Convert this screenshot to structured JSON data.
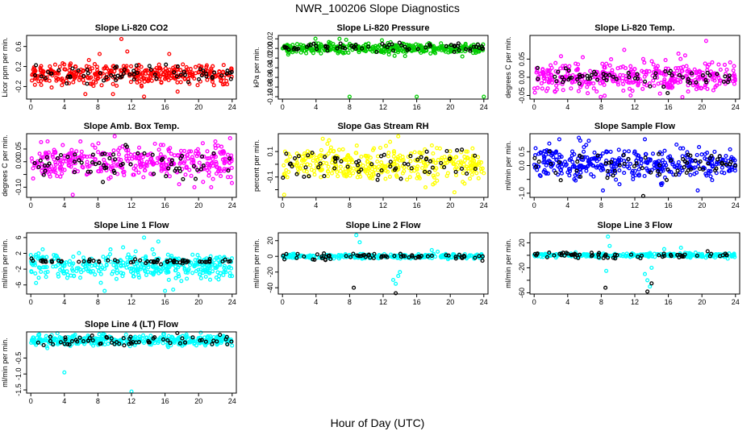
{
  "page": {
    "title": "NWR_100206  Slope Diagnostics",
    "xlabel": "Hour of Day (UTC)"
  },
  "colors": {
    "red": "#ff0000",
    "green": "#00cc00",
    "magenta": "#ff00ff",
    "yellow": "#ffff00",
    "blue": "#0000ff",
    "cyan": "#00ffff",
    "black": "#000000"
  },
  "chart_data": [
    {
      "type": "scatter",
      "title": "Slope Li-820 CO2",
      "ylabel": "Licor ppm per min.",
      "xlim": [
        -0.5,
        24.5
      ],
      "ylim": [
        -0.45,
        0.82
      ],
      "xticks": [
        0,
        4,
        8,
        12,
        16,
        20,
        24
      ],
      "yticks": [
        -0.2,
        0.2,
        0.6
      ],
      "yticklabels": [
        "-0.2",
        "0.2",
        "0.6"
      ],
      "series": [
        {
          "color": "red",
          "center": 0.05,
          "spread": 0.12,
          "n": 380,
          "outliers": [
            [
              10.8,
              0.75
            ],
            [
              11.5,
              0.5
            ],
            [
              8.2,
              0.45
            ],
            [
              16.5,
              0.45
            ],
            [
              6.5,
              -0.35
            ],
            [
              9.8,
              -0.35
            ],
            [
              13.5,
              -0.4
            ],
            [
              17.5,
              -0.3
            ]
          ]
        },
        {
          "color": "black",
          "center": 0.05,
          "spread": 0.1,
          "n": 65,
          "outliers": []
        }
      ]
    },
    {
      "type": "scatter",
      "title": "Slope Li-820 Pressure",
      "ylabel": "kPa per min.",
      "xlim": [
        -0.5,
        24.5
      ],
      "ylim": [
        -0.105,
        0.027
      ],
      "xticks": [
        0,
        4,
        8,
        12,
        16,
        20,
        24
      ],
      "yticks": [
        -0.1,
        -0.08,
        -0.06,
        -0.04,
        -0.02,
        0,
        0.02
      ],
      "yticklabels": [
        "-0.10",
        "-0.08",
        "-0.06",
        "-0.04",
        "-0.02",
        "0.00",
        "0.02"
      ],
      "series": [
        {
          "color": "green",
          "center": 0.0,
          "spread": 0.006,
          "n": 380,
          "outliers": [
            [
              8.0,
              -0.1
            ],
            [
              16.0,
              -0.1
            ],
            [
              24.0,
              -0.1
            ],
            [
              6.8,
              0.02
            ],
            [
              7.6,
              0.018
            ]
          ]
        },
        {
          "color": "black",
          "center": 0.003,
          "spread": 0.005,
          "n": 65,
          "outliers": []
        }
      ]
    },
    {
      "type": "scatter",
      "title": "Slope Li-820 Temp.",
      "ylabel": "degrees C per min.",
      "xlim": [
        -0.5,
        24.5
      ],
      "ylim": [
        -0.06,
        0.115
      ],
      "xticks": [
        0,
        4,
        8,
        12,
        16,
        20,
        24
      ],
      "yticks": [
        -0.05,
        0.0,
        0.05
      ],
      "yticklabels": [
        "-0.05",
        "0.00",
        "0.05"
      ],
      "series": [
        {
          "color": "magenta",
          "center": 0.0,
          "spread": 0.022,
          "n": 380,
          "outliers": [
            [
              20.5,
              0.1
            ],
            [
              17.2,
              0.065
            ],
            [
              18.0,
              0.06
            ],
            [
              5.8,
              0.055
            ],
            [
              13.0,
              0.05
            ],
            [
              11.5,
              -0.05
            ],
            [
              15.0,
              -0.045
            ],
            [
              2.5,
              -0.04
            ]
          ]
        },
        {
          "color": "black",
          "center": 0.0,
          "spread": 0.015,
          "n": 65,
          "outliers": []
        }
      ]
    },
    {
      "type": "scatter",
      "title": "Slope Amb. Box Temp.",
      "ylabel": "degrees C per min.",
      "xlim": [
        -0.5,
        24.5
      ],
      "ylim": [
        -0.14,
        0.11
      ],
      "xticks": [
        0,
        4,
        8,
        12,
        16,
        20,
        24
      ],
      "yticks": [
        -0.1,
        -0.05,
        0.0,
        0.05
      ],
      "yticklabels": [
        "-0.10",
        "",
        "0.00",
        "0.05"
      ],
      "series": [
        {
          "color": "magenta",
          "center": 0.0,
          "spread": 0.035,
          "n": 380,
          "outliers": [
            [
              5.0,
              -0.13
            ],
            [
              10.0,
              0.1
            ],
            [
              19.5,
              -0.1
            ],
            [
              22.0,
              0.08
            ],
            [
              2.0,
              0.08
            ],
            [
              21.5,
              -0.1
            ]
          ]
        },
        {
          "color": "black",
          "center": 0.0,
          "spread": 0.03,
          "n": 65,
          "outliers": []
        }
      ]
    },
    {
      "type": "scatter",
      "title": "Slope Gas Stream RH",
      "ylabel": "percent per min.",
      "xlim": [
        -0.5,
        24.5
      ],
      "ylim": [
        -0.26,
        0.24
      ],
      "xticks": [
        0,
        4,
        8,
        12,
        16,
        20,
        24
      ],
      "yticks": [
        -0.2,
        -0.1,
        0.0,
        0.1
      ],
      "yticklabels": [
        "",
        "-0.1",
        "",
        "0.1"
      ],
      "series": [
        {
          "color": "yellow",
          "center": 0.0,
          "spread": 0.07,
          "n": 380,
          "outliers": [
            [
              13.8,
              0.22
            ],
            [
              0.2,
              -0.24
            ],
            [
              4.8,
              0.2
            ],
            [
              20.5,
              -0.22
            ]
          ]
        },
        {
          "color": "black",
          "center": 0.0,
          "spread": 0.06,
          "n": 65,
          "outliers": []
        }
      ]
    },
    {
      "type": "scatter",
      "title": "Slope Sample Flow",
      "ylabel": "ml/min per min.",
      "xlim": [
        -0.5,
        24.5
      ],
      "ylim": [
        -1.15,
        1.15
      ],
      "xticks": [
        0,
        4,
        8,
        12,
        16,
        20,
        24
      ],
      "yticks": [
        -1.0,
        -0.5,
        0.0,
        0.5
      ],
      "yticklabels": [
        "-1.0",
        "",
        "0.0",
        "0.5"
      ],
      "series": [
        {
          "color": "blue",
          "center": 0.05,
          "spread": 0.3,
          "n": 380,
          "outliers": [
            [
              8.2,
              -0.9
            ],
            [
              5.5,
              0.9
            ],
            [
              13.2,
              0.95
            ],
            [
              19.5,
              -0.9
            ],
            [
              3.0,
              0.95
            ]
          ]
        },
        {
          "color": "black",
          "center": 0.05,
          "spread": 0.25,
          "n": 65,
          "outliers": [
            [
              13.0,
              -1.1
            ]
          ]
        }
      ]
    },
    {
      "type": "scatter",
      "title": "Slope Line 1 Flow",
      "ylabel": "ml/min per min.",
      "xlim": [
        -0.5,
        24.5
      ],
      "ylim": [
        -8.3,
        7.2
      ],
      "xticks": [
        0,
        4,
        8,
        12,
        16,
        20,
        24
      ],
      "yticks": [
        -6,
        -2,
        2,
        6
      ],
      "yticklabels": [
        "-6",
        "-2",
        "2",
        "6"
      ],
      "series": [
        {
          "color": "cyan",
          "center": -1.3,
          "spread": 1.8,
          "n": 380,
          "outliers": [
            [
              13.5,
              6.0
            ],
            [
              15.2,
              5.0
            ],
            [
              11.0,
              3.5
            ],
            [
              9.5,
              3.0
            ],
            [
              8.8,
              -7.5
            ],
            [
              16.0,
              -7.5
            ],
            [
              12.5,
              2.5
            ],
            [
              14.5,
              3.0
            ]
          ]
        },
        {
          "color": "black",
          "center": 0.0,
          "spread": 0.3,
          "n": 65,
          "outliers": []
        }
      ]
    },
    {
      "type": "scatter",
      "title": "Slope Line 2 Flow",
      "ylabel": "ml/min per min.",
      "xlim": [
        -0.5,
        24.5
      ],
      "ylim": [
        -48,
        30
      ],
      "xticks": [
        0,
        4,
        8,
        12,
        16,
        20,
        24
      ],
      "yticks": [
        -40,
        -20,
        0,
        20
      ],
      "yticklabels": [
        "-40",
        "-20",
        "0",
        "20"
      ],
      "series": [
        {
          "color": "cyan",
          "center": 0.0,
          "spread": 1.5,
          "n": 300,
          "outliers": [
            [
              8.8,
              27
            ],
            [
              9.2,
              18
            ],
            [
              13.2,
              -30
            ],
            [
              13.5,
              -35
            ],
            [
              13.8,
              -25
            ],
            [
              14.0,
              -20
            ],
            [
              17.8,
              8
            ],
            [
              18.5,
              6
            ]
          ]
        },
        {
          "color": "black",
          "center": 0.0,
          "spread": 2.5,
          "n": 65,
          "outliers": [
            [
              8.5,
              -40
            ],
            [
              13.5,
              -47
            ]
          ]
        }
      ]
    },
    {
      "type": "scatter",
      "title": "Slope Line 3 Flow",
      "ylabel": "ml/min per min.",
      "xlim": [
        -0.5,
        24.5
      ],
      "ylim": [
        -62,
        36
      ],
      "xticks": [
        0,
        4,
        8,
        12,
        16,
        20,
        24
      ],
      "yticks": [
        -60,
        -40,
        -20,
        0,
        20
      ],
      "yticklabels": [
        "-60",
        "",
        "-20",
        "",
        "20"
      ],
      "series": [
        {
          "color": "cyan",
          "center": 0.0,
          "spread": 1.8,
          "n": 300,
          "outliers": [
            [
              8.8,
              30
            ],
            [
              9.0,
              15
            ],
            [
              8.6,
              -25
            ],
            [
              13.5,
              -40
            ],
            [
              13.8,
              -50
            ],
            [
              13.2,
              -30
            ],
            [
              14.0,
              -20
            ],
            [
              15.5,
              10
            ],
            [
              17.5,
              12
            ]
          ]
        },
        {
          "color": "black",
          "center": 0.0,
          "spread": 2.5,
          "n": 65,
          "outliers": [
            [
              8.5,
              -52
            ],
            [
              13.5,
              -58
            ],
            [
              14.0,
              -45
            ]
          ]
        }
      ]
    },
    {
      "type": "scatter",
      "title": "Slope Line 4 (LT) Flow",
      "ylabel": "ml/min per min.",
      "xlim": [
        -0.5,
        24.5
      ],
      "ylim": [
        -1.6,
        0.32
      ],
      "xticks": [
        0,
        4,
        8,
        12,
        16,
        20,
        24
      ],
      "yticks": [
        -1.5,
        -1.0,
        -0.5
      ],
      "yticklabels": [
        "-1.5",
        "-1.0",
        "-0.5"
      ],
      "series": [
        {
          "color": "cyan",
          "center": 0.05,
          "spread": 0.09,
          "n": 380,
          "outliers": [
            [
              12.0,
              -1.55
            ],
            [
              4.0,
              -0.95
            ],
            [
              15.8,
              0.25
            ],
            [
              2.5,
              0.22
            ]
          ]
        },
        {
          "color": "black",
          "center": 0.05,
          "spread": 0.1,
          "n": 65,
          "outliers": []
        }
      ]
    }
  ]
}
